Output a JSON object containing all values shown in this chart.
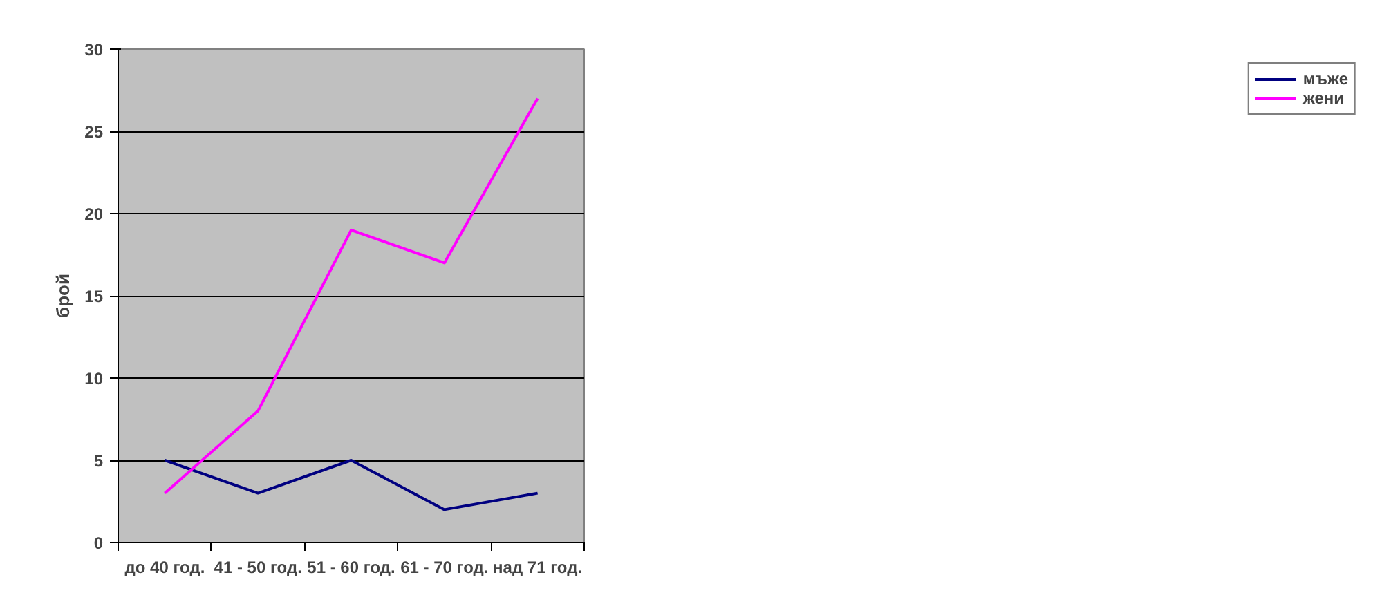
{
  "chart_data": {
    "type": "line",
    "ylabel": "брой",
    "categories": [
      "до 40 год.",
      "41 - 50 год.",
      "51 - 60 год.",
      "61 - 70 год.",
      "над 71 год."
    ],
    "series": [
      {
        "name": "мъже",
        "color": "#000080",
        "values": [
          5,
          3,
          5,
          2,
          3
        ]
      },
      {
        "name": "жени",
        "color": "#ff00ff",
        "values": [
          3,
          8,
          19,
          17,
          27
        ]
      }
    ],
    "ylim": [
      0,
      30
    ],
    "yticks": [
      0,
      5,
      10,
      15,
      20,
      25,
      30
    ],
    "grid": "y",
    "legend": "right",
    "marker": "none",
    "line_style": "solid"
  }
}
